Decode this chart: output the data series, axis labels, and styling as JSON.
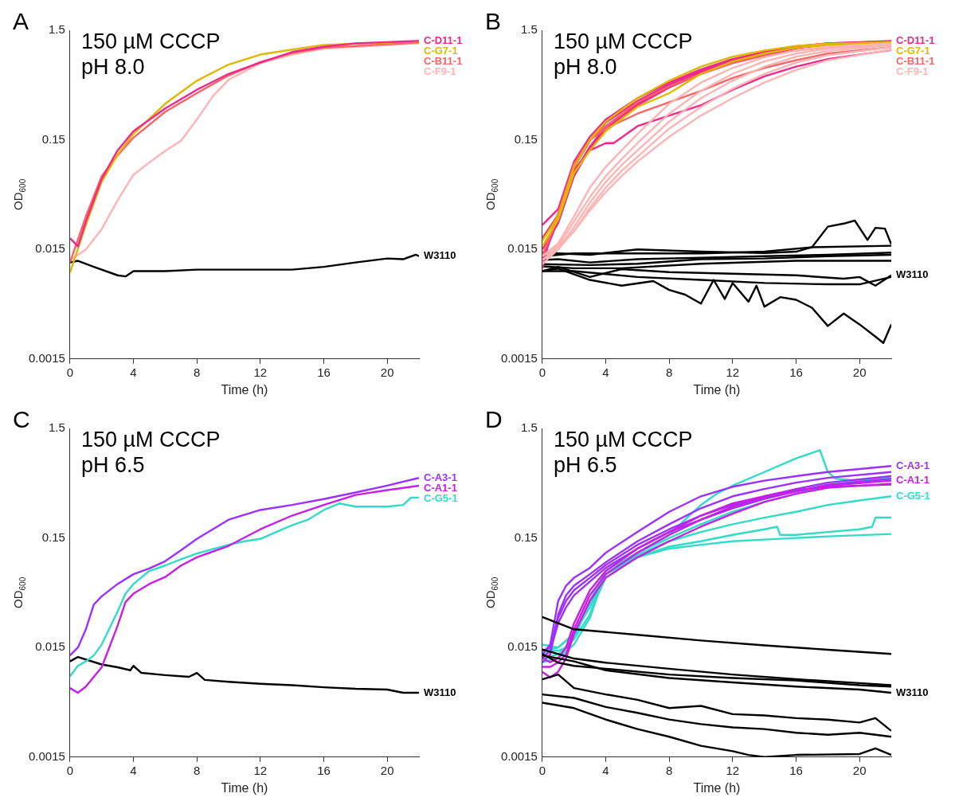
{
  "chart_data": [
    {
      "type": "line",
      "xlabel": "Time (h)",
      "ylabel": "OD$_{600}$",
      "annotations": [
        "A",
        "150 µM CCCP",
        "pH 8.0"
      ],
      "log": "y",
      "xlim": [
        0,
        22
      ],
      "xticks": [
        0,
        4,
        8,
        12,
        16,
        20
      ],
      "ylim": [
        0.0015,
        1.5
      ],
      "yticks": [
        0.0015,
        0.015,
        0.15,
        1.5
      ],
      "series": [
        {
          "name": "C-D11-1",
          "color": "#f0288c",
          "x": [
            0,
            0.5,
            1,
            2,
            3,
            4,
            6,
            8,
            10,
            12,
            14,
            16,
            18,
            22
          ],
          "values": [
            0.019,
            0.016,
            0.027,
            0.066,
            0.12,
            0.18,
            0.29,
            0.43,
            0.6,
            0.76,
            0.95,
            1.06,
            1.14,
            1.2
          ]
        },
        {
          "name": "C-G7-1",
          "color": "#e0b800",
          "x": [
            0,
            1,
            2,
            3,
            4,
            6,
            8,
            10,
            12,
            14,
            16,
            22
          ],
          "values": [
            0.0092,
            0.025,
            0.062,
            0.11,
            0.17,
            0.32,
            0.52,
            0.73,
            0.9,
            1.0,
            1.1,
            1.19
          ]
        },
        {
          "name": "C-B11-1",
          "color": "#fa6464",
          "x": [
            0,
            1,
            2,
            3,
            4,
            6,
            8,
            10,
            12,
            14,
            16,
            22
          ],
          "values": [
            0.0114,
            0.03,
            0.07,
            0.108,
            0.157,
            0.27,
            0.4,
            0.58,
            0.77,
            0.93,
            1.04,
            1.16
          ]
        },
        {
          "name": "C-F9-1",
          "color": "#ffb4b4",
          "x": [
            0,
            1,
            2,
            3,
            4,
            5,
            6,
            7,
            8,
            9,
            10,
            12,
            14,
            16,
            22
          ],
          "values": [
            0.0119,
            0.015,
            0.023,
            0.042,
            0.072,
            0.093,
            0.119,
            0.147,
            0.23,
            0.375,
            0.53,
            0.75,
            0.9,
            1.02,
            1.14
          ]
        },
        {
          "name": "W3110",
          "color": "#000000",
          "x": [
            0,
            0.5,
            1.5,
            3,
            3.5,
            4,
            6,
            8,
            10,
            12,
            14,
            16,
            18,
            20,
            21,
            21.8,
            22
          ],
          "values": [
            0.0114,
            0.0118,
            0.0104,
            0.0087,
            0.0085,
            0.0095,
            0.0095,
            0.0098,
            0.0098,
            0.0098,
            0.0098,
            0.0104,
            0.0114,
            0.0124,
            0.0122,
            0.0134,
            0.013
          ]
        }
      ]
    },
    {
      "type": "line",
      "xlabel": "Time (h)",
      "ylabel": "OD$_{600}$",
      "annotations": [
        "B",
        "150 µM CCCP",
        "pH 8.0"
      ],
      "log": "y",
      "xlim": [
        0,
        22
      ],
      "xticks": [
        0,
        4,
        8,
        12,
        16,
        20
      ],
      "ylim": [
        0.0015,
        1.5
      ],
      "yticks": [
        0.0015,
        0.015,
        0.15,
        1.5
      ],
      "series": [
        {
          "color": "#ffb4b4",
          "x": [
            0,
            1,
            2,
            3,
            4,
            5,
            6,
            8,
            10,
            12,
            14,
            16,
            18,
            22
          ],
          "values": [
            0.013,
            0.017,
            0.03,
            0.055,
            0.085,
            0.12,
            0.17,
            0.32,
            0.5,
            0.68,
            0.85,
            0.98,
            1.06,
            1.14
          ]
        },
        {
          "color": "#ffb4b4",
          "x": [
            0,
            1,
            2,
            3,
            4,
            5,
            6,
            8,
            10,
            12,
            14,
            16,
            18,
            22
          ],
          "values": [
            0.012,
            0.016,
            0.027,
            0.045,
            0.07,
            0.1,
            0.14,
            0.26,
            0.42,
            0.6,
            0.78,
            0.92,
            1.02,
            1.12
          ]
        },
        {
          "color": "#ffb4b4",
          "x": [
            0,
            1,
            2,
            3,
            4,
            5,
            6,
            8,
            10,
            12,
            14,
            16,
            18,
            22
          ],
          "values": [
            0.011,
            0.015,
            0.024,
            0.04,
            0.062,
            0.088,
            0.12,
            0.22,
            0.36,
            0.52,
            0.7,
            0.86,
            0.97,
            1.1
          ]
        },
        {
          "name": "C-F9-1",
          "color": "#ffb4b4",
          "x": [
            0,
            1,
            2,
            3,
            4,
            5,
            6,
            8,
            10,
            12,
            14,
            16,
            18,
            22
          ],
          "values": [
            0.012,
            0.015,
            0.022,
            0.036,
            0.055,
            0.078,
            0.105,
            0.19,
            0.3,
            0.44,
            0.6,
            0.76,
            0.89,
            1.05
          ]
        },
        {
          "color": "#ffb4b4",
          "x": [
            0,
            1,
            2,
            3,
            4,
            5,
            6,
            8,
            10,
            12,
            14,
            16,
            18,
            22
          ],
          "values": [
            0.013,
            0.016,
            0.022,
            0.034,
            0.05,
            0.07,
            0.095,
            0.16,
            0.25,
            0.36,
            0.5,
            0.65,
            0.8,
            1.0
          ]
        },
        {
          "name": "C-G7-1",
          "color": "#e0b800",
          "x": [
            0,
            1,
            2,
            3,
            4,
            6,
            8,
            10,
            12,
            14,
            16,
            18,
            22
          ],
          "values": [
            0.018,
            0.03,
            0.085,
            0.15,
            0.22,
            0.36,
            0.52,
            0.7,
            0.86,
            0.98,
            1.08,
            1.13,
            1.17
          ]
        },
        {
          "color": "#e0b800",
          "x": [
            0,
            1,
            2,
            3,
            4,
            6,
            8,
            10,
            12,
            14,
            16,
            18,
            22
          ],
          "values": [
            0.016,
            0.028,
            0.075,
            0.12,
            0.18,
            0.3,
            0.4,
            0.6,
            0.78,
            0.92,
            1.04,
            1.1,
            1.15
          ]
        },
        {
          "name": "C-B11-1",
          "color": "#fa6464",
          "x": [
            0,
            1,
            2,
            3,
            4,
            6,
            8,
            10,
            12,
            14,
            16,
            18,
            22
          ],
          "values": [
            0.013,
            0.032,
            0.09,
            0.15,
            0.2,
            0.33,
            0.46,
            0.6,
            0.75,
            0.88,
            0.98,
            1.05,
            1.1
          ]
        },
        {
          "color": "#fa6464",
          "x": [
            0,
            1,
            2,
            3,
            4,
            6,
            8,
            10,
            12,
            14,
            16,
            18,
            22
          ],
          "values": [
            0.013,
            0.03,
            0.09,
            0.15,
            0.19,
            0.26,
            0.33,
            0.42,
            0.55,
            0.68,
            0.8,
            0.92,
            1.05
          ]
        },
        {
          "name": "C-D11-1",
          "color": "#f0288c",
          "x": [
            0,
            1,
            2,
            3,
            4,
            6,
            8,
            10,
            12,
            14,
            16,
            18,
            22
          ],
          "values": [
            0.019,
            0.031,
            0.084,
            0.147,
            0.216,
            0.34,
            0.48,
            0.64,
            0.8,
            0.93,
            1.06,
            1.14,
            1.19
          ]
        },
        {
          "color": "#f0288c",
          "x": [
            0,
            1,
            2,
            3,
            4,
            6,
            8,
            10,
            12,
            14,
            16,
            18,
            22
          ],
          "values": [
            0.025,
            0.035,
            0.095,
            0.16,
            0.23,
            0.36,
            0.5,
            0.66,
            0.82,
            0.95,
            1.07,
            1.14,
            1.2
          ]
        },
        {
          "color": "#f0288c",
          "x": [
            0,
            1,
            2,
            3,
            4,
            6,
            8,
            10,
            12,
            14,
            16,
            18,
            22
          ],
          "values": [
            0.012,
            0.028,
            0.075,
            0.13,
            0.2,
            0.32,
            0.46,
            0.62,
            0.78,
            0.92,
            1.04,
            1.12,
            1.18
          ]
        },
        {
          "color": "#f0288c",
          "x": [
            0,
            1,
            2,
            3,
            4,
            6,
            8,
            10,
            12,
            14,
            16,
            18,
            22
          ],
          "values": [
            0.015,
            0.026,
            0.07,
            0.125,
            0.19,
            0.31,
            0.45,
            0.6,
            0.76,
            0.9,
            1.03,
            1.11,
            1.17
          ]
        },
        {
          "color": "#f0288c",
          "x": [
            0,
            0.5,
            1,
            2,
            3,
            4,
            4.5,
            6,
            8,
            10,
            12,
            14,
            16,
            18,
            22
          ],
          "values": [
            0.01,
            0.02,
            0.03,
            0.08,
            0.12,
            0.14,
            0.14,
            0.2,
            0.25,
            0.31,
            0.43,
            0.57,
            0.7,
            0.82,
            0.99
          ]
        },
        {
          "color": "#000000",
          "x": [
            0,
            3,
            6,
            10,
            14,
            16,
            17,
            18,
            19,
            19.7,
            20.5,
            21,
            21.6,
            22
          ],
          "values": [
            0.014,
            0.0134,
            0.015,
            0.0143,
            0.0139,
            0.0143,
            0.0157,
            0.0242,
            0.0258,
            0.0275,
            0.0183,
            0.0236,
            0.0232,
            0.0167
          ]
        },
        {
          "color": "#000000",
          "x": [
            0,
            2,
            6,
            10,
            14,
            17,
            22
          ],
          "values": [
            0.013,
            0.0138,
            0.0138,
            0.0138,
            0.0143,
            0.0157,
            0.0162
          ]
        },
        {
          "color": "#000000",
          "x": [
            0,
            1,
            3,
            6,
            10,
            14,
            18,
            22
          ],
          "values": [
            0.012,
            0.0122,
            0.0114,
            0.0122,
            0.0126,
            0.013,
            0.0134,
            0.014
          ]
        },
        {
          "color": "#000000",
          "x": [
            0,
            3,
            6,
            10,
            14,
            18,
            22
          ],
          "values": [
            0.011,
            0.0108,
            0.0111,
            0.0122,
            0.0124,
            0.013,
            0.0134
          ]
        },
        {
          "color": "#000000",
          "x": [
            0,
            2,
            5,
            10,
            16,
            22
          ],
          "values": [
            0.0105,
            0.0101,
            0.0101,
            0.0111,
            0.0118,
            0.0118
          ]
        },
        {
          "name": "W3110",
          "color": "#000000",
          "x": [
            0,
            1,
            3,
            5,
            8,
            12,
            16,
            19,
            20,
            21,
            22
          ],
          "values": [
            0.0095,
            0.0104,
            0.0084,
            0.0099,
            0.0093,
            0.009,
            0.0087,
            0.0081,
            0.0084,
            0.007,
            0.0087
          ]
        },
        {
          "color": "#000000",
          "x": [
            0,
            2,
            6,
            10,
            14,
            18,
            20,
            22
          ],
          "values": [
            0.0095,
            0.0095,
            0.0084,
            0.0079,
            0.0074,
            0.0072,
            0.0072,
            0.0084
          ]
        },
        {
          "color": "#000000",
          "x": [
            0,
            1,
            3,
            5,
            7,
            8,
            9,
            10,
            10.8,
            11.5,
            12,
            13,
            13.5,
            14,
            15,
            16,
            17,
            18,
            19,
            20,
            21,
            21.5,
            22
          ],
          "values": [
            0.0095,
            0.01,
            0.0079,
            0.007,
            0.0077,
            0.0064,
            0.0058,
            0.0048,
            0.0079,
            0.0053,
            0.0074,
            0.005,
            0.007,
            0.0045,
            0.0055,
            0.0052,
            0.0044,
            0.003,
            0.0039,
            0.0031,
            0.0024,
            0.0021,
            0.0031
          ]
        }
      ]
    },
    {
      "type": "line",
      "xlabel": "Time (h)",
      "ylabel": "OD$_{600}$",
      "annotations": [
        "C",
        "150 µM CCCP",
        "pH 6.5"
      ],
      "log": "y",
      "xlim": [
        0,
        22
      ],
      "xticks": [
        0,
        4,
        8,
        12,
        16,
        20
      ],
      "ylim": [
        0.0015,
        1.5
      ],
      "yticks": [
        0.0015,
        0.015,
        0.15,
        1.5
      ],
      "series": [
        {
          "name": "C-A3-1",
          "color": "#9b30ff",
          "x": [
            0,
            0.5,
            1,
            1.5,
            2,
            3,
            4,
            5,
            6,
            7,
            8,
            9,
            10,
            12,
            14,
            16,
            18,
            20,
            22
          ],
          "values": [
            0.0127,
            0.015,
            0.022,
            0.037,
            0.044,
            0.057,
            0.07,
            0.079,
            0.092,
            0.116,
            0.147,
            0.18,
            0.22,
            0.27,
            0.3,
            0.34,
            0.39,
            0.45,
            0.53
          ]
        },
        {
          "name": "C-A1-1",
          "color": "#c81ee6",
          "x": [
            0,
            0.5,
            1,
            2,
            3,
            3.5,
            4,
            5,
            6,
            7,
            8,
            10,
            12,
            14,
            16,
            18,
            20,
            22
          ],
          "values": [
            0.0064,
            0.0058,
            0.0066,
            0.0099,
            0.0237,
            0.039,
            0.0465,
            0.057,
            0.066,
            0.084,
            0.1,
            0.127,
            0.18,
            0.24,
            0.3,
            0.37,
            0.41,
            0.45
          ]
        },
        {
          "name": "C-G5-1",
          "color": "#30dcc8",
          "x": [
            0,
            0.5,
            1,
            1.5,
            2,
            3,
            3.5,
            4,
            5,
            6,
            7,
            8,
            10,
            11,
            12,
            13,
            14,
            15,
            16,
            17,
            18,
            20,
            21,
            21.5,
            22
          ],
          "values": [
            0.0082,
            0.0102,
            0.0112,
            0.0127,
            0.016,
            0.032,
            0.0465,
            0.057,
            0.075,
            0.084,
            0.096,
            0.108,
            0.13,
            0.14,
            0.147,
            0.17,
            0.196,
            0.22,
            0.27,
            0.31,
            0.29,
            0.29,
            0.3,
            0.35,
            0.35
          ]
        },
        {
          "name": "W3110",
          "color": "#000000",
          "x": [
            0,
            0.5,
            2,
            3,
            3.8,
            4,
            4.5,
            6,
            7.5,
            8,
            8.5,
            10,
            12,
            14,
            16,
            18,
            20,
            21,
            22
          ],
          "values": [
            0.0112,
            0.0123,
            0.0105,
            0.0099,
            0.0093,
            0.0102,
            0.0088,
            0.0084,
            0.0081,
            0.0088,
            0.0076,
            0.0073,
            0.007,
            0.0068,
            0.0065,
            0.0063,
            0.0062,
            0.0058,
            0.0058
          ]
        }
      ]
    },
    {
      "type": "line",
      "xlabel": "Time (h)",
      "ylabel": "OD$_{600}$",
      "annotations": [
        "D",
        "150 µM CCCP",
        "pH 6.5"
      ],
      "log": "y",
      "xlim": [
        0,
        22
      ],
      "xticks": [
        0,
        4,
        8,
        12,
        16,
        20
      ],
      "ylim": [
        0.0015,
        1.5
      ],
      "yticks": [
        0.0015,
        0.015,
        0.15,
        1.5
      ],
      "series": [
        {
          "color": "#000000",
          "x": [
            0,
            2,
            6,
            10,
            14,
            18,
            22
          ],
          "values": [
            0.0285,
            0.022,
            0.0196,
            0.0174,
            0.0157,
            0.0143,
            0.0131
          ]
        },
        {
          "color": "#000000",
          "x": [
            0,
            2,
            4,
            8,
            12,
            16,
            20,
            22
          ],
          "values": [
            0.0144,
            0.0119,
            0.0109,
            0.0096,
            0.0085,
            0.0077,
            0.0071,
            0.0068
          ]
        },
        {
          "color": "#000000",
          "x": [
            0,
            1,
            2,
            4,
            8,
            12,
            16,
            20,
            22
          ],
          "values": [
            0.0131,
            0.0109,
            0.0102,
            0.0096,
            0.0085,
            0.0079,
            0.0075,
            0.0068,
            0.0066
          ]
        },
        {
          "name": "W3110",
          "color": "#000000",
          "x": [
            0,
            2,
            4,
            8,
            12,
            16,
            20,
            22
          ],
          "values": [
            0.0127,
            0.0112,
            0.0093,
            0.0079,
            0.0072,
            0.0066,
            0.0062,
            0.0058
          ]
        },
        {
          "color": "#000000",
          "x": [
            0,
            1,
            2,
            4,
            6,
            8,
            10,
            12,
            14,
            16,
            18,
            20,
            21,
            22
          ],
          "values": [
            0.0077,
            0.0085,
            0.0064,
            0.0056,
            0.005,
            0.0042,
            0.0044,
            0.0037,
            0.0036,
            0.0034,
            0.0033,
            0.0031,
            0.0034,
            0.0026
          ]
        },
        {
          "color": "#000000",
          "x": [
            0,
            2,
            4,
            6,
            8,
            10,
            12,
            14,
            16,
            18,
            20,
            22
          ],
          "values": [
            0.0056,
            0.0052,
            0.0043,
            0.0038,
            0.0033,
            0.003,
            0.0028,
            0.0027,
            0.0025,
            0.0024,
            0.0025,
            0.0023
          ]
        },
        {
          "color": "#000000",
          "x": [
            0,
            2,
            4,
            6,
            8,
            10,
            12,
            13,
            14,
            16,
            20,
            21,
            22
          ],
          "values": [
            0.0047,
            0.0042,
            0.0033,
            0.0027,
            0.0023,
            0.0019,
            0.0017,
            0.00157,
            0.0015,
            0.00157,
            0.0016,
            0.0018,
            0.00157
          ]
        },
        {
          "color": "#c81ee6",
          "x": [
            0,
            0.5,
            1,
            1.5,
            2,
            3,
            4,
            6,
            8,
            10,
            12,
            14,
            16,
            18,
            22
          ],
          "values": [
            0.009,
            0.008,
            0.009,
            0.012,
            0.02,
            0.04,
            0.065,
            0.1,
            0.14,
            0.19,
            0.25,
            0.32,
            0.38,
            0.43,
            0.47
          ]
        },
        {
          "name": "C-A1-1",
          "color": "#c81ee6",
          "x": [
            0,
            0.5,
            1,
            1.5,
            2,
            3,
            4,
            6,
            8,
            10,
            12,
            14,
            16,
            18,
            22
          ],
          "values": [
            0.01,
            0.01,
            0.011,
            0.013,
            0.022,
            0.045,
            0.07,
            0.11,
            0.16,
            0.22,
            0.29,
            0.35,
            0.4,
            0.45,
            0.5
          ]
        },
        {
          "color": "#c81ee6",
          "x": [
            0,
            0.5,
            1,
            1.5,
            2,
            3,
            4,
            6,
            8,
            10,
            12,
            14,
            16,
            18,
            22
          ],
          "values": [
            0.012,
            0.011,
            0.012,
            0.015,
            0.025,
            0.05,
            0.075,
            0.12,
            0.17,
            0.24,
            0.31,
            0.36,
            0.41,
            0.44,
            0.46
          ]
        },
        {
          "name": "C-A3-1",
          "color": "#9b30ff",
          "x": [
            0,
            0.5,
            1,
            1.5,
            2,
            3,
            4,
            6,
            8,
            10,
            12,
            14,
            16,
            18,
            22
          ],
          "values": [
            0.013,
            0.016,
            0.04,
            0.055,
            0.065,
            0.08,
            0.11,
            0.17,
            0.26,
            0.36,
            0.44,
            0.5,
            0.55,
            0.6,
            0.68
          ]
        },
        {
          "color": "#9b30ff",
          "x": [
            0,
            0.5,
            1,
            1.5,
            2,
            3,
            4,
            6,
            8,
            10,
            12,
            14,
            16,
            18,
            22
          ],
          "values": [
            0.011,
            0.013,
            0.03,
            0.045,
            0.055,
            0.07,
            0.09,
            0.14,
            0.2,
            0.28,
            0.36,
            0.42,
            0.48,
            0.53,
            0.6
          ]
        },
        {
          "color": "#9b30ff",
          "x": [
            0,
            0.5,
            1,
            1.5,
            2,
            3,
            4,
            6,
            8,
            10,
            12,
            14,
            16,
            18,
            22
          ],
          "values": [
            0.014,
            0.015,
            0.028,
            0.04,
            0.05,
            0.065,
            0.085,
            0.13,
            0.18,
            0.24,
            0.3,
            0.36,
            0.42,
            0.48,
            0.55
          ]
        },
        {
          "color": "#9b30ff",
          "x": [
            0,
            0.5,
            1,
            1.5,
            2,
            3,
            4,
            6,
            8,
            10,
            12,
            14,
            16,
            18,
            22
          ],
          "values": [
            0.012,
            0.014,
            0.025,
            0.035,
            0.045,
            0.06,
            0.08,
            0.12,
            0.17,
            0.22,
            0.28,
            0.34,
            0.4,
            0.46,
            0.52
          ]
        },
        {
          "color": "#30dcc8",
          "x": [
            0,
            0.5,
            1,
            1.5,
            2,
            3,
            3.5,
            4,
            6,
            8,
            10,
            12,
            14,
            16,
            18,
            22
          ],
          "values": [
            0.013,
            0.014,
            0.014,
            0.015,
            0.018,
            0.03,
            0.05,
            0.07,
            0.1,
            0.12,
            0.13,
            0.14,
            0.145,
            0.15,
            0.155,
            0.163
          ]
        },
        {
          "color": "#30dcc8",
          "x": [
            0,
            1,
            2,
            3,
            3.5,
            4,
            6,
            8,
            10,
            12,
            14,
            14.8,
            15,
            16,
            18,
            20,
            20.8,
            21,
            22
          ],
          "values": [
            0.011,
            0.012,
            0.016,
            0.028,
            0.045,
            0.065,
            0.1,
            0.125,
            0.14,
            0.16,
            0.18,
            0.19,
            0.16,
            0.16,
            0.17,
            0.18,
            0.19,
            0.23,
            0.23
          ]
        },
        {
          "color": "#30dcc8",
          "x": [
            0,
            1,
            2,
            3,
            4,
            6,
            8,
            9,
            10,
            11,
            12,
            14,
            16,
            17.5,
            18,
            18.5,
            20,
            22
          ],
          "values": [
            0.016,
            0.015,
            0.02,
            0.035,
            0.07,
            0.11,
            0.16,
            0.22,
            0.3,
            0.38,
            0.45,
            0.6,
            0.8,
            0.95,
            0.6,
            0.52,
            0.5,
            0.55
          ]
        },
        {
          "color": "#30dcc8",
          "x": [
            0,
            1,
            2,
            3,
            4,
            6,
            8,
            10,
            12,
            14,
            16,
            18,
            20,
            22
          ],
          "values": [
            0.012,
            0.013,
            0.018,
            0.04,
            0.075,
            0.11,
            0.15,
            0.2,
            0.26,
            0.32,
            0.38,
            0.45,
            0.5,
            0.52
          ]
        },
        {
          "name": "C-G5-1",
          "color": "#30dcc8",
          "x": [
            0,
            1,
            2,
            3,
            4,
            6,
            8,
            10,
            12,
            14,
            16,
            18,
            20,
            22
          ],
          "values": [
            0.014,
            0.015,
            0.02,
            0.038,
            0.07,
            0.105,
            0.14,
            0.17,
            0.2,
            0.23,
            0.26,
            0.3,
            0.33,
            0.36
          ]
        }
      ]
    }
  ]
}
